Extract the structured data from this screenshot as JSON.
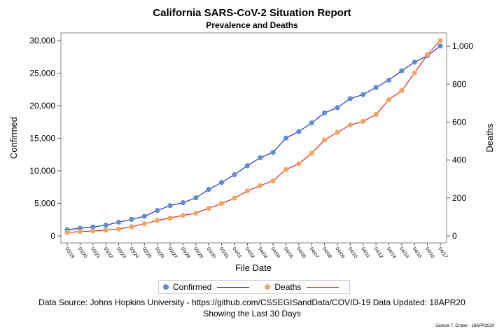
{
  "chart_data": {
    "type": "line",
    "title": "California SARS-CoV-2 Situation Report",
    "subtitle": "Prevalence and Deaths",
    "xlabel": "File Date",
    "ylabel_left": "Confirmed",
    "ylabel_right": "Deaths",
    "categories": [
      "03/19",
      "03/20",
      "03/21",
      "03/22",
      "03/23",
      "03/24",
      "03/25",
      "03/26",
      "03/27",
      "03/28",
      "03/29",
      "03/30",
      "03/31",
      "04/01",
      "04/02",
      "04/03",
      "04/04",
      "04/05",
      "04/06",
      "04/07",
      "04/08",
      "04/09",
      "04/10",
      "04/11",
      "04/12",
      "04/13",
      "04/14",
      "04/15",
      "04/16",
      "04/17"
    ],
    "ylim_left": [
      0,
      30000
    ],
    "ylim_right": [
      0,
      1030
    ],
    "yticks_left": [
      0,
      5000,
      10000,
      15000,
      20000,
      25000,
      30000
    ],
    "yticks_left_labels": [
      "0",
      "5,000",
      "10,000",
      "15,000",
      "20,000",
      "25,000",
      "30,000"
    ],
    "yticks_right": [
      0,
      200,
      400,
      600,
      800,
      1000
    ],
    "yticks_right_labels": [
      "0",
      "200",
      "400",
      "600",
      "800",
      "1,000"
    ],
    "legend_position": "bottom",
    "grid": false,
    "series": [
      {
        "name": "Confirmed",
        "axis": "left",
        "marker_color": "#5b8fd1",
        "line_color": "#1f2fd0",
        "values": [
          952,
          1177,
          1364,
          1646,
          2108,
          2538,
          3006,
          3899,
          4657,
          5095,
          5852,
          7138,
          8210,
          9399,
          10773,
          12004,
          12837,
          15034,
          16019,
          17351,
          18897,
          19710,
          21081,
          21706,
          22795,
          23931,
          25356,
          26686,
          27677,
          29157
        ]
      },
      {
        "name": "Deaths",
        "axis": "right",
        "marker_color": "#f0a860",
        "line_color": "#e8281c",
        "values": [
          18,
          23,
          26,
          30,
          36,
          48,
          64,
          82,
          94,
          108,
          120,
          145,
          171,
          199,
          237,
          265,
          290,
          350,
          380,
          436,
          506,
          546,
          585,
          604,
          640,
          718,
          766,
          860,
          956,
          1030
        ]
      }
    ]
  },
  "legend": {
    "confirmed_label": "Confirmed",
    "deaths_label": "Deaths"
  },
  "footnotes": {
    "line1": "Data Source: Johns Hopkins University - https://github.com/CSSEGISandData/COVID-19 Data Updated: 18APR20",
    "line2": "Showing the Last 30 Days",
    "credit": "Samuel T. Croker - 18APR2020"
  }
}
